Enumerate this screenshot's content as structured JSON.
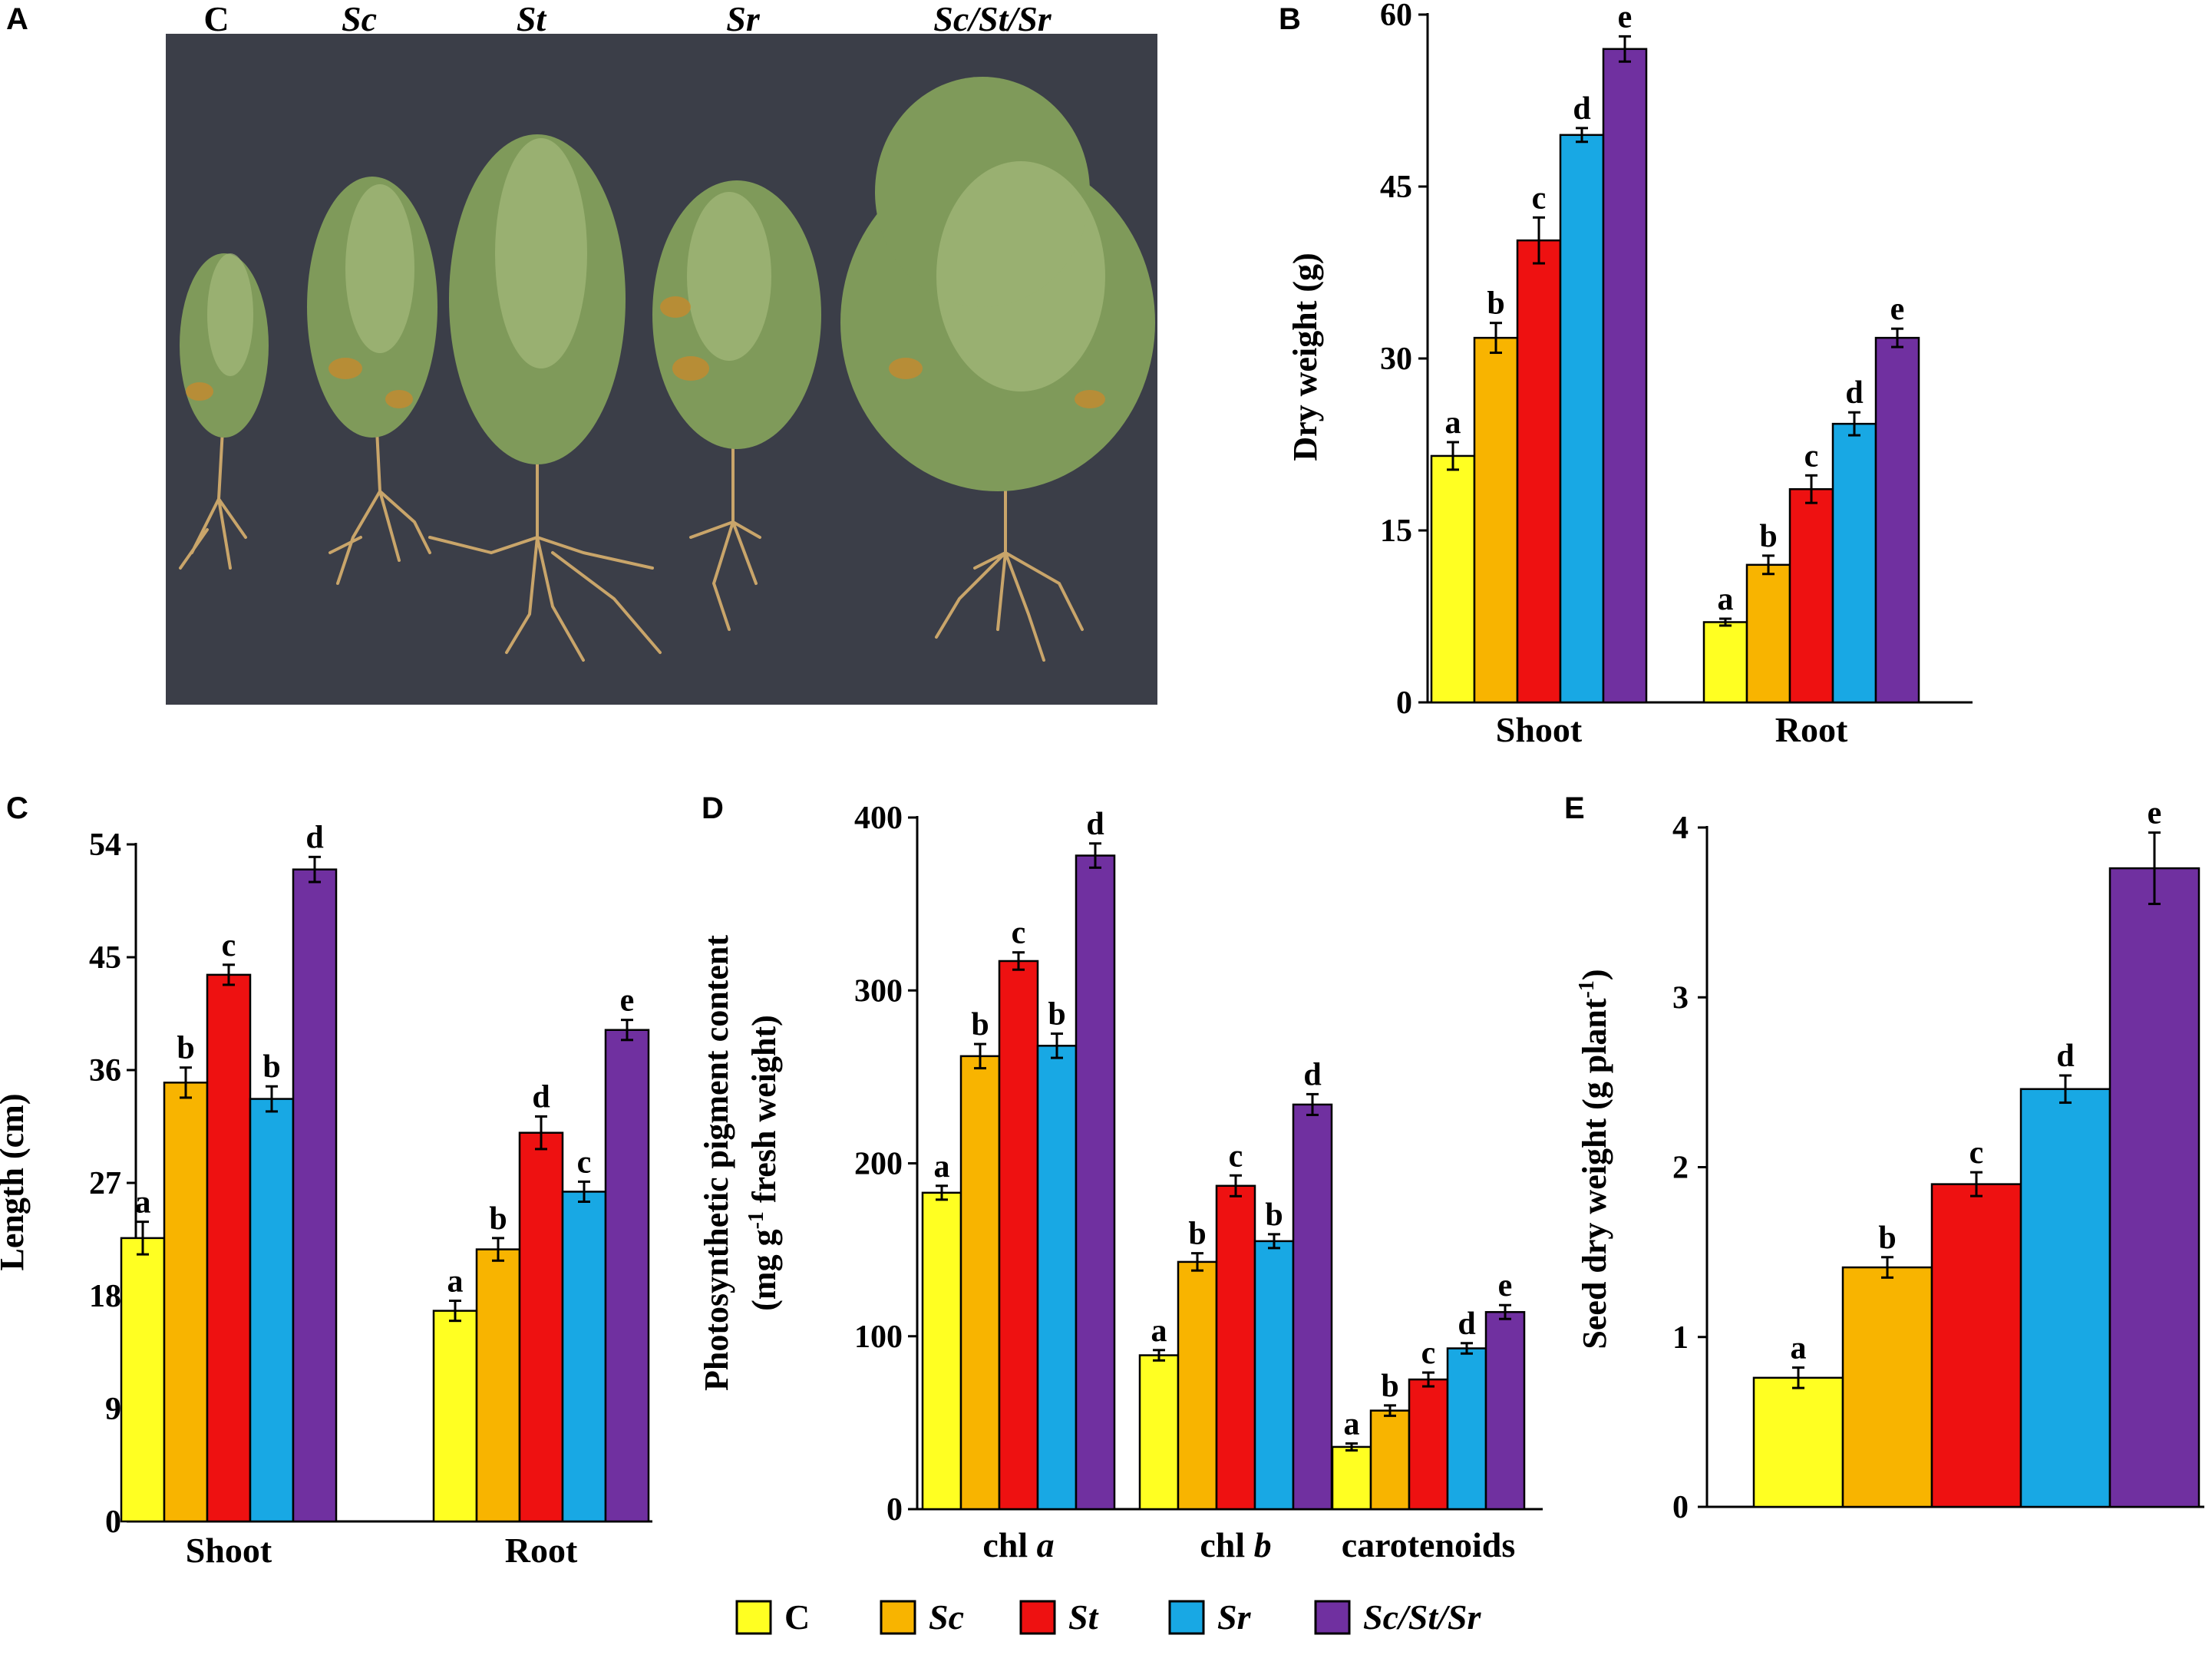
{
  "colors": {
    "C": "#ffff22",
    "Sc": "#f8b400",
    "St": "#ee1111",
    "Sr": "#18a8e4",
    "Sc/St/Sr": "#7030a0"
  },
  "panels": {
    "A": {
      "letter": "A",
      "photo_labels": [
        "C",
        "Sc",
        "St",
        "Sr",
        "Sc/St/Sr"
      ]
    },
    "B": {
      "letter": "B"
    },
    "C": {
      "letter": "C"
    },
    "D": {
      "letter": "D"
    },
    "E": {
      "letter": "E"
    }
  },
  "legend": {
    "items": [
      {
        "key": "C",
        "label": "C",
        "italic": false
      },
      {
        "key": "Sc",
        "label": "Sc",
        "italic": true
      },
      {
        "key": "St",
        "label": "St",
        "italic": true
      },
      {
        "key": "Sr",
        "label": "Sr",
        "italic": true
      },
      {
        "key": "Sc/St/Sr",
        "label": "Sc/St/Sr",
        "italic": true
      }
    ]
  },
  "chart_data": [
    {
      "panel": "B",
      "type": "bar",
      "ylabel": "Dry weight (g)",
      "ylim": [
        0,
        60
      ],
      "yticks": [
        0,
        15,
        30,
        45,
        60
      ],
      "categories": [
        "Shoot",
        "Root"
      ],
      "series": [
        {
          "name": "C",
          "values": [
            21.5,
            7.0
          ],
          "errors": [
            1.2,
            0.3
          ],
          "letters": [
            "a",
            "a"
          ]
        },
        {
          "name": "Sc",
          "values": [
            31.8,
            12.0
          ],
          "errors": [
            1.3,
            0.8
          ],
          "letters": [
            "b",
            "b"
          ]
        },
        {
          "name": "St",
          "values": [
            40.3,
            18.6
          ],
          "errors": [
            2.0,
            1.2
          ],
          "letters": [
            "c",
            "c"
          ]
        },
        {
          "name": "Sr",
          "values": [
            49.5,
            24.3
          ],
          "errors": [
            0.6,
            1.0
          ],
          "letters": [
            "d",
            "d"
          ]
        },
        {
          "name": "Sc/St/Sr",
          "values": [
            57.0,
            31.8
          ],
          "errors": [
            1.1,
            0.8
          ],
          "letters": [
            "e",
            "e"
          ]
        }
      ]
    },
    {
      "panel": "C",
      "type": "bar",
      "ylabel": "Length (cm)",
      "ylim": [
        0,
        54
      ],
      "yticks": [
        0,
        9,
        18,
        27,
        36,
        45,
        54
      ],
      "categories": [
        "Shoot",
        "Root"
      ],
      "series": [
        {
          "name": "C",
          "values": [
            22.6,
            16.8
          ],
          "errors": [
            1.3,
            0.8
          ],
          "letters": [
            "a",
            "a"
          ]
        },
        {
          "name": "Sc",
          "values": [
            35.0,
            21.7
          ],
          "errors": [
            1.2,
            0.9
          ],
          "letters": [
            "b",
            "b"
          ]
        },
        {
          "name": "St",
          "values": [
            43.6,
            31.0
          ],
          "errors": [
            0.8,
            1.3
          ],
          "letters": [
            "c",
            "d"
          ]
        },
        {
          "name": "Sr",
          "values": [
            33.7,
            26.3
          ],
          "errors": [
            1.0,
            0.8
          ],
          "letters": [
            "b",
            "c"
          ]
        },
        {
          "name": "Sc/St/Sr",
          "values": [
            52.0,
            39.2
          ],
          "errors": [
            1.0,
            0.8
          ],
          "letters": [
            "d",
            "e"
          ]
        }
      ]
    },
    {
      "panel": "D",
      "type": "bar",
      "ylabel": "Photosynthetic pigment content",
      "ylabel_line2": "(mg g-1 fresh weight)",
      "ylim": [
        0,
        400
      ],
      "yticks": [
        0,
        100,
        200,
        300,
        400
      ],
      "categories": [
        "chl a",
        "chl b",
        "carotenoids"
      ],
      "series": [
        {
          "name": "C",
          "values": [
            183,
            89,
            36
          ],
          "errors": [
            4,
            3,
            2
          ],
          "letters": [
            "a",
            "a",
            "a"
          ]
        },
        {
          "name": "Sc",
          "values": [
            262,
            143,
            57
          ],
          "errors": [
            7,
            5,
            3
          ],
          "letters": [
            "b",
            "b",
            "b"
          ]
        },
        {
          "name": "St",
          "values": [
            317,
            187,
            75
          ],
          "errors": [
            5,
            6,
            4
          ],
          "letters": [
            "c",
            "c",
            "c"
          ]
        },
        {
          "name": "Sr",
          "values": [
            268,
            155,
            93
          ],
          "errors": [
            7,
            4,
            3
          ],
          "letters": [
            "b",
            "b",
            "d"
          ]
        },
        {
          "name": "Sc/St/Sr",
          "values": [
            378,
            234,
            114
          ],
          "errors": [
            7,
            6,
            4
          ],
          "letters": [
            "d",
            "d",
            "e"
          ]
        }
      ]
    },
    {
      "panel": "E",
      "type": "bar",
      "ylabel": "Seed dry weight (g plant-1)",
      "ylim": [
        0,
        4
      ],
      "yticks": [
        0,
        1,
        2,
        3,
        4
      ],
      "categories": [
        ""
      ],
      "series": [
        {
          "name": "C",
          "values": [
            0.76
          ],
          "errors": [
            0.06
          ],
          "letters": [
            "a"
          ]
        },
        {
          "name": "Sc",
          "values": [
            1.41
          ],
          "errors": [
            0.06
          ],
          "letters": [
            "b"
          ]
        },
        {
          "name": "St",
          "values": [
            1.9
          ],
          "errors": [
            0.07
          ],
          "letters": [
            "c"
          ]
        },
        {
          "name": "Sr",
          "values": [
            2.46
          ],
          "errors": [
            0.08
          ],
          "letters": [
            "d"
          ]
        },
        {
          "name": "Sc/St/Sr",
          "values": [
            3.76
          ],
          "errors": [
            0.21
          ],
          "letters": [
            "e"
          ]
        }
      ]
    }
  ]
}
